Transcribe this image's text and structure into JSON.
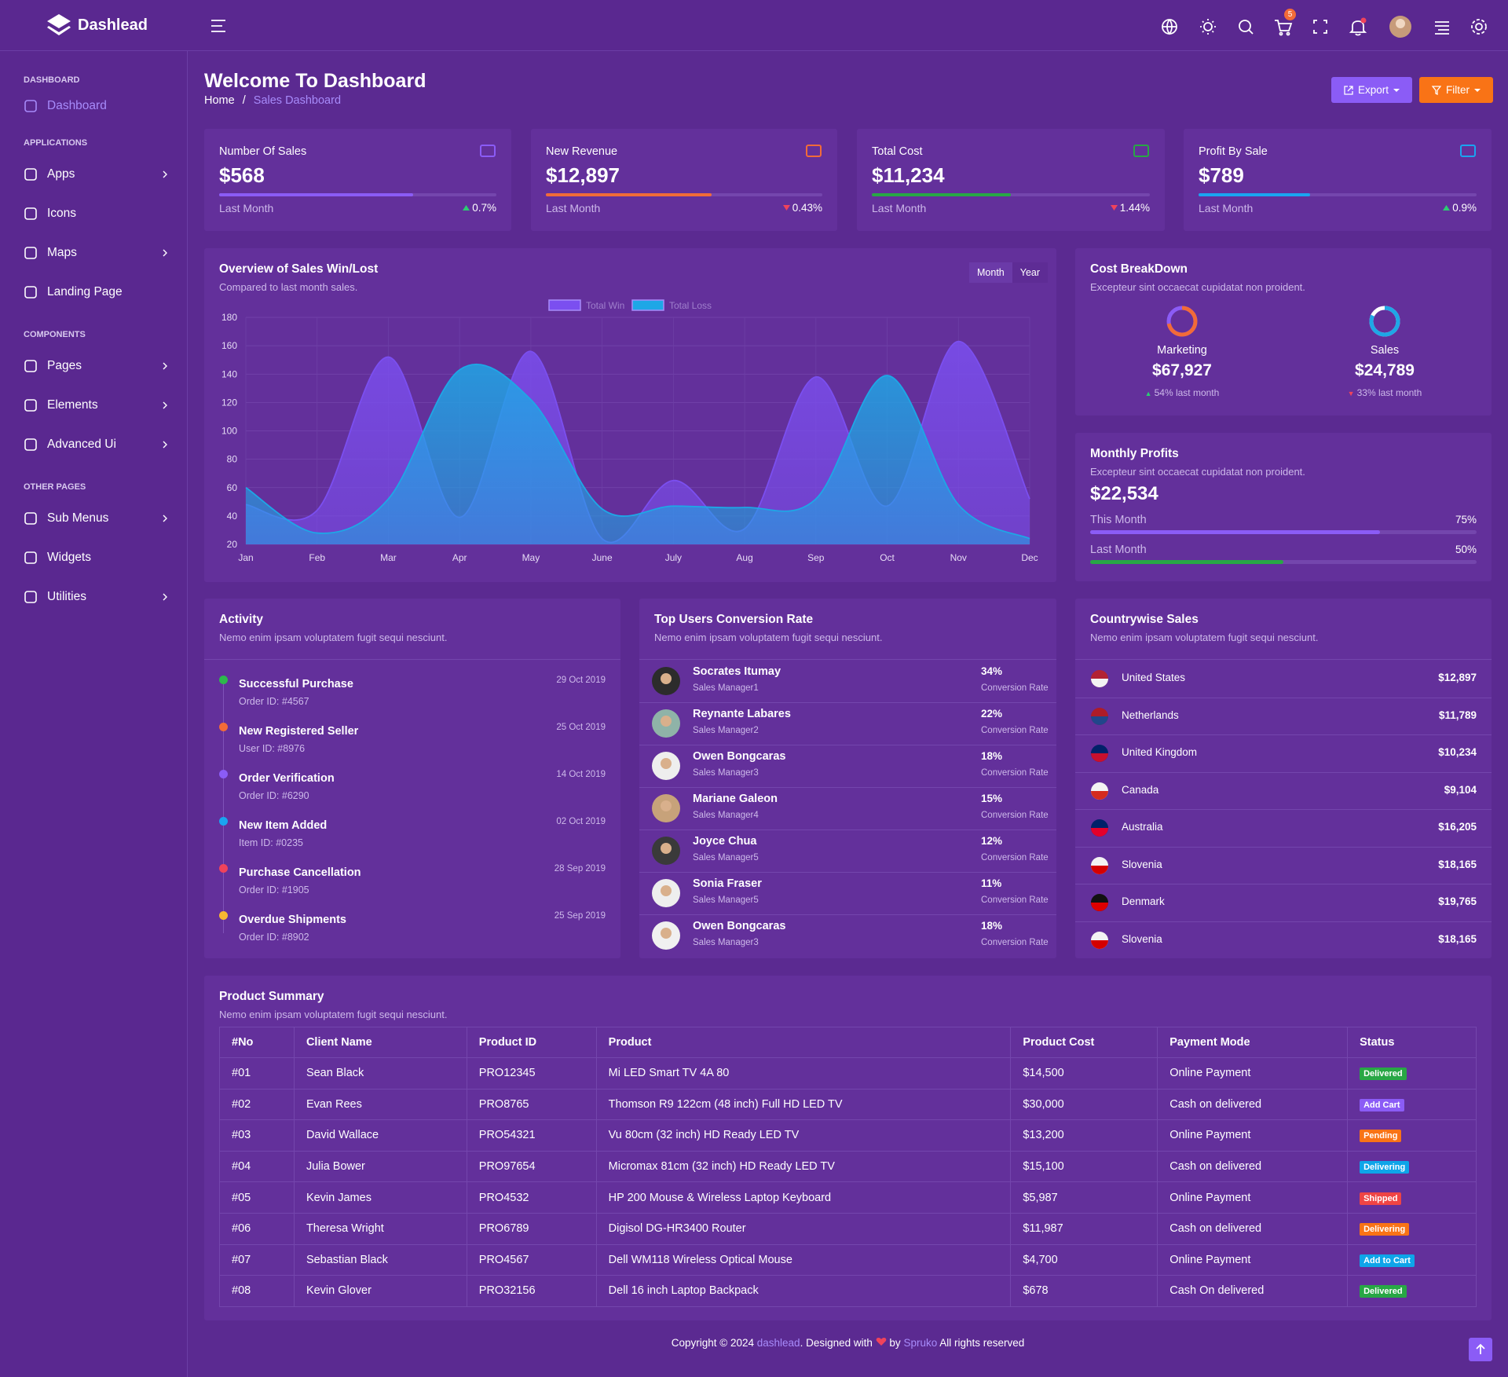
{
  "brand": "Dashlead",
  "header": {
    "cart_badge": 5
  },
  "sidebar": [
    {
      "heading": "DASHBOARD",
      "items": [
        {
          "label": "Dashboard",
          "active": true
        }
      ]
    },
    {
      "heading": "APPLICATIONS",
      "items": [
        {
          "label": "Apps",
          "submenu": true
        },
        {
          "label": "Icons"
        },
        {
          "label": "Maps",
          "submenu": true
        },
        {
          "label": "Landing Page"
        }
      ]
    },
    {
      "heading": "COMPONENTS",
      "items": [
        {
          "label": "Pages",
          "submenu": true
        },
        {
          "label": "Elements",
          "submenu": true
        },
        {
          "label": "Advanced Ui",
          "submenu": true
        }
      ]
    },
    {
      "heading": "OTHER PAGES",
      "items": [
        {
          "label": "Sub Menus",
          "submenu": true
        },
        {
          "label": "Widgets"
        },
        {
          "label": "Utilities",
          "submenu": true
        }
      ]
    }
  ],
  "page": {
    "title": "Welcome To Dashboard",
    "breadcrumb": [
      "Home",
      "Sales Dashboard"
    ],
    "buttons": [
      {
        "label": "Export",
        "color": "#8b5cf6"
      },
      {
        "label": "Filter",
        "color": "#f97316"
      }
    ]
  },
  "stats": [
    {
      "title": "Number Of Sales",
      "value": "$568",
      "period": "Last Month",
      "change": "0.7%",
      "trend": "up",
      "progress": 70,
      "color": "#8b5cf6"
    },
    {
      "title": "New Revenue",
      "value": "$12,897",
      "period": "Last Month",
      "change": "0.43%",
      "trend": "down",
      "progress": 60,
      "color": "#f26b38"
    },
    {
      "title": "Total Cost",
      "value": "$11,234",
      "period": "Last Month",
      "change": "1.44%",
      "trend": "down",
      "progress": 50,
      "color": "#28a745"
    },
    {
      "title": "Profit By Sale",
      "value": "$789",
      "period": "Last Month",
      "change": "0.9%",
      "trend": "up",
      "progress": 40,
      "color": "#1aa4f0"
    }
  ],
  "chart_data": {
    "type": "area",
    "title": "Overview of Sales Win/Lost",
    "subtitle": "Compared to last month sales.",
    "toggle": [
      "Month",
      "Year"
    ],
    "categories": [
      "Jan",
      "Feb",
      "Mar",
      "Apr",
      "May",
      "June",
      "July",
      "Aug",
      "Sep",
      "Oct",
      "Nov",
      "Dec"
    ],
    "series": [
      {
        "name": "Total Win",
        "color": "#7b4ff0",
        "values": [
          48,
          44,
          152,
          39,
          156,
          24,
          65,
          31,
          138,
          47,
          163,
          52
        ]
      },
      {
        "name": "Total Loss",
        "color": "#1ea7e6",
        "values": [
          60,
          28,
          52,
          143,
          122,
          45,
          47,
          46,
          52,
          139,
          48,
          24
        ]
      }
    ],
    "ylim": [
      20,
      180
    ],
    "yticks": [
      20,
      40,
      60,
      80,
      100,
      120,
      140,
      160,
      180
    ],
    "grid": true,
    "legend": "top"
  },
  "cost_breakdown": {
    "title": "Cost BreakDown",
    "subtitle": "Excepteur sint occaecat cupidatat non proident.",
    "items": [
      {
        "label": "Marketing",
        "value": "$67,927",
        "change": "54% last month",
        "trend": "up",
        "share": 72,
        "color": "#f26b38"
      },
      {
        "label": "Sales",
        "value": "$24,789",
        "change": "33% last month",
        "trend": "down",
        "share": 82,
        "color": "#1ea7e6"
      }
    ]
  },
  "monthly_profits": {
    "title": "Monthly Profits",
    "subtitle": "Excepteur sint occaecat cupidatat non proident.",
    "value": "$22,534",
    "bars": [
      {
        "label": "This Month",
        "value": 75,
        "value_label": "75%",
        "color": "#8b5cf6"
      },
      {
        "label": "Last Month",
        "value": 50,
        "value_label": "50%",
        "color": "#28a745"
      }
    ]
  },
  "activity": {
    "title": "Activity",
    "subtitle": "Nemo enim ipsam voluptatem fugit sequi nesciunt.",
    "items": [
      {
        "title": "Successful Purchase",
        "ref": "Order ID: #4567",
        "date": "29 Oct 2019",
        "color": "#2db84c"
      },
      {
        "title": "New Registered Seller",
        "ref": "User ID: #8976",
        "date": "25 Oct 2019",
        "color": "#f26b38"
      },
      {
        "title": "Order Verification",
        "ref": "Order ID: #6290",
        "date": "14 Oct 2019",
        "color": "#8b5cf6"
      },
      {
        "title": "New Item Added",
        "ref": "Item ID: #0235",
        "date": "02 Oct 2019",
        "color": "#1aa4f0"
      },
      {
        "title": "Purchase Cancellation",
        "ref": "Order ID: #1905",
        "date": "28 Sep 2019",
        "color": "#f0435b"
      },
      {
        "title": "Overdue Shipments",
        "ref": "Order ID: #8902",
        "date": "25 Sep 2019",
        "color": "#f7b731"
      }
    ]
  },
  "top_users": {
    "title": "Top Users Conversion Rate",
    "subtitle": "Nemo enim ipsam voluptatem fugit sequi nesciunt.",
    "rate_caption": "Conversion Rate",
    "items": [
      {
        "name": "Socrates Itumay",
        "role": "Sales Manager1",
        "rate": "34%"
      },
      {
        "name": "Reynante Labares",
        "role": "Sales Manager2",
        "rate": "22%"
      },
      {
        "name": "Owen Bongcaras",
        "role": "Sales Manager3",
        "rate": "18%"
      },
      {
        "name": "Mariane Galeon",
        "role": "Sales Manager4",
        "rate": "15%"
      },
      {
        "name": "Joyce Chua",
        "role": "Sales Manager5",
        "rate": "12%"
      },
      {
        "name": "Sonia Fraser",
        "role": "Sales Manager5",
        "rate": "11%"
      },
      {
        "name": "Owen Bongcaras",
        "role": "Sales Manager3",
        "rate": "18%"
      }
    ]
  },
  "countrywise": {
    "title": "Countrywise Sales",
    "subtitle": "Nemo enim ipsam voluptatem fugit sequi nesciunt.",
    "items": [
      {
        "country": "United States",
        "amount": "$12,897",
        "flag": [
          "#b22234",
          "#f3f3f3"
        ]
      },
      {
        "country": "Netherlands",
        "amount": "$11,789",
        "flag": [
          "#ae1c28",
          "#21468b"
        ]
      },
      {
        "country": "United Kingdom",
        "amount": "$10,234",
        "flag": [
          "#012169",
          "#c8102e"
        ]
      },
      {
        "country": "Canada",
        "amount": "$9,104",
        "flag": [
          "#f3f3f3",
          "#d52b1e"
        ]
      },
      {
        "country": "Australia",
        "amount": "$16,205",
        "flag": [
          "#012169",
          "#e4002b"
        ]
      },
      {
        "country": "Slovenia",
        "amount": "$18,165",
        "flag": [
          "#f3f3f3",
          "#d50000"
        ]
      },
      {
        "country": "Denmark",
        "amount": "$19,765",
        "flag": [
          "#111111",
          "#dd0000"
        ]
      },
      {
        "country": "Slovenia",
        "amount": "$18,165",
        "flag": [
          "#f3f3f3",
          "#d50000"
        ]
      }
    ]
  },
  "products": {
    "title": "Product Summary",
    "subtitle": "Nemo enim ipsam voluptatem fugit sequi nesciunt.",
    "columns": [
      "#No",
      "Client Name",
      "Product ID",
      "Product",
      "Product Cost",
      "Payment Mode",
      "Status"
    ],
    "rows": [
      [
        "#01",
        "Sean Black",
        "PRO12345",
        "Mi LED Smart TV 4A 80",
        "$14,500",
        "Online Payment",
        "Delivered"
      ],
      [
        "#02",
        "Evan Rees",
        "PRO8765",
        "Thomson R9 122cm (48 inch) Full HD LED TV",
        "$30,000",
        "Cash on delivered",
        "Add Cart"
      ],
      [
        "#03",
        "David Wallace",
        "PRO54321",
        "Vu 80cm (32 inch) HD Ready LED TV",
        "$13,200",
        "Online Payment",
        "Pending"
      ],
      [
        "#04",
        "Julia Bower",
        "PRO97654",
        "Micromax 81cm (32 inch) HD Ready LED TV",
        "$15,100",
        "Cash on delivered",
        "Delivering"
      ],
      [
        "#05",
        "Kevin James",
        "PRO4532",
        "HP 200 Mouse & Wireless Laptop Keyboard",
        "$5,987",
        "Online Payment",
        "Shipped"
      ],
      [
        "#06",
        "Theresa Wright",
        "PRO6789",
        "Digisol DG-HR3400 Router",
        "$11,987",
        "Cash on delivered",
        "Delivering"
      ],
      [
        "#07",
        "Sebastian Black",
        "PRO4567",
        "Dell WM118 Wireless Optical Mouse",
        "$4,700",
        "Online Payment",
        "Add to Cart"
      ],
      [
        "#08",
        "Kevin Glover",
        "PRO32156",
        "Dell 16 inch Laptop Backpack",
        "$678",
        "Cash On delivered",
        "Delivered"
      ]
    ],
    "status_colors": [
      "#28a745",
      "#8b5cf6",
      "#f97316",
      "#0ea5e9",
      "#ef4444",
      "#f97316",
      "#0ea5e9",
      "#28a745"
    ]
  },
  "footer": {
    "copyright": "Copyright © 2024",
    "site": "dashlead",
    "designed": ". Designed with",
    "by": "by",
    "company": "Spruko",
    "rights": "All rights reserved"
  }
}
